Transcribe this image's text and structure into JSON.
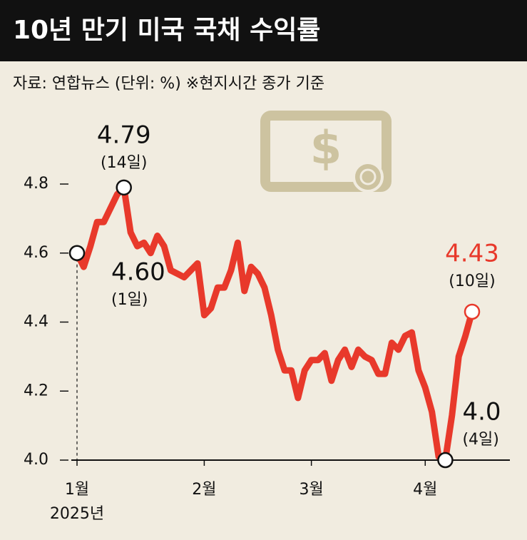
{
  "chart_data": {
    "type": "line",
    "title": "10년 만기 미국 국채 수익률",
    "subtitle": "자료: 연합뉴스 (단위: %) ※현지시간 종가 기준",
    "year_label": "2025년",
    "categories": [
      "1월",
      null,
      null,
      null,
      null,
      null,
      null,
      null,
      null,
      null,
      null,
      null,
      null,
      null,
      null,
      null,
      null,
      null,
      null,
      "2월",
      null,
      null,
      null,
      null,
      null,
      null,
      null,
      null,
      null,
      null,
      null,
      null,
      null,
      null,
      null,
      "3월",
      null,
      null,
      null,
      null,
      null,
      null,
      null,
      null,
      null,
      null,
      null,
      null,
      null,
      null,
      null,
      null,
      "4월",
      null,
      null,
      null,
      null,
      null,
      null,
      null
    ],
    "series": [
      {
        "color": "#e8392b",
        "values": [
          4.6,
          4.56,
          4.62,
          4.69,
          4.69,
          4.73,
          4.77,
          4.79,
          4.66,
          4.62,
          4.63,
          4.6,
          4.65,
          4.62,
          4.55,
          4.54,
          4.53,
          4.55,
          4.57,
          4.42,
          4.44,
          4.5,
          4.5,
          4.55,
          4.63,
          4.49,
          4.56,
          4.54,
          4.5,
          4.42,
          4.32,
          4.26,
          4.26,
          4.18,
          4.26,
          4.29,
          4.29,
          4.31,
          4.23,
          4.29,
          4.32,
          4.27,
          4.32,
          4.3,
          4.29,
          4.25,
          4.25,
          4.34,
          4.32,
          4.36,
          4.37,
          4.26,
          4.21,
          4.14,
          4.01,
          4.0,
          4.13,
          4.3,
          4.36,
          4.43
        ]
      }
    ],
    "annotations": [
      {
        "value": 4.79,
        "label": "4.79",
        "note": "(14일)"
      },
      {
        "value": 4.6,
        "label": "4.60",
        "note": "(1일)"
      },
      {
        "value": 4.43,
        "label": "4.43",
        "note": "(10일)",
        "color": "#e8392b"
      },
      {
        "value": 4.0,
        "label": "4.0",
        "note": "(4일)"
      }
    ],
    "ylim": [
      4.0,
      4.8
    ],
    "yticks": [
      {
        "value": 4.0,
        "label": "4.0"
      },
      4.2,
      4.4,
      4.6,
      4.8
    ]
  }
}
